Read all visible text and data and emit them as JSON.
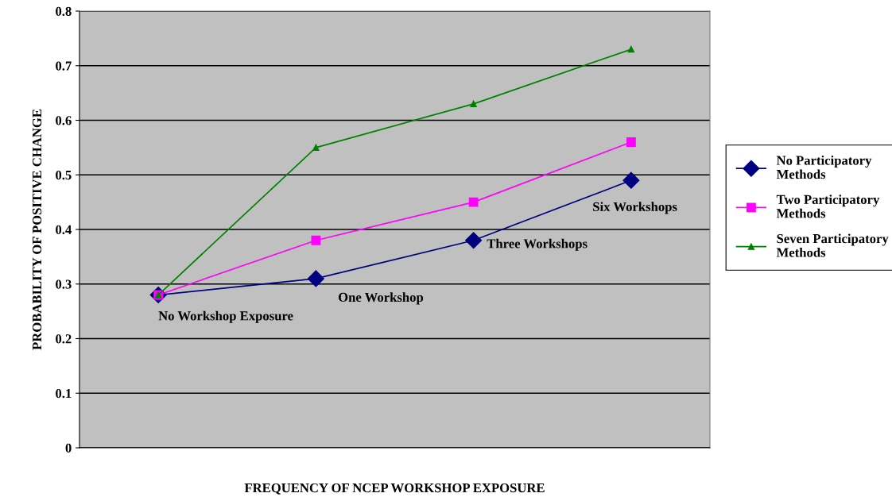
{
  "chart_data": {
    "type": "line",
    "xlabel": "FREQUENCY OF NCEP WORKSHOP EXPOSURE",
    "ylabel": "PROBABILITY OF POSITIVE CHANGE",
    "categories": [
      "No Workshop Exposure",
      "One Workshop",
      "Three Workshops",
      "Six Workshops"
    ],
    "series": [
      {
        "name": "No Participatory Methods",
        "color": "#000080",
        "marker": "diamond",
        "values": [
          0.28,
          0.31,
          0.38,
          0.49
        ]
      },
      {
        "name": "Two Participatory Methods",
        "color": "#ff00ff",
        "marker": "square",
        "values": [
          0.28,
          0.38,
          0.45,
          0.56
        ]
      },
      {
        "name": "Seven Participatory Methods",
        "color": "#008000",
        "marker": "triangle",
        "values": [
          0.28,
          0.55,
          0.63,
          0.73
        ]
      }
    ],
    "ylim": [
      0,
      0.8
    ],
    "yticks": [
      0,
      0.1,
      0.2,
      0.3,
      0.4,
      0.5,
      0.6,
      0.7,
      0.8
    ],
    "grid": "y",
    "legend": "right"
  }
}
